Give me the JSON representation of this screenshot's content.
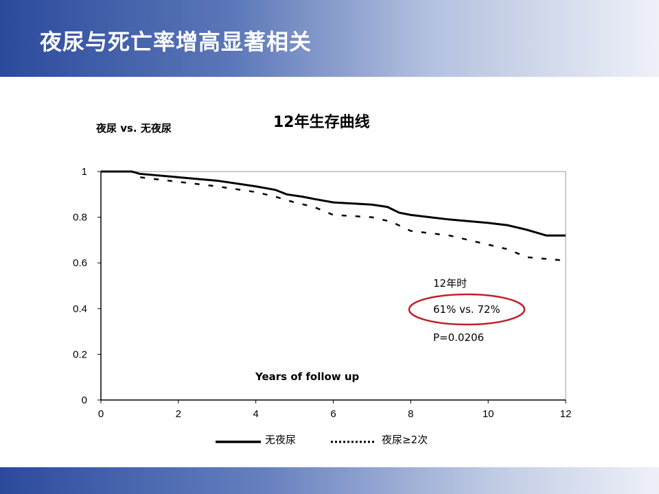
{
  "slide": {
    "title": "夜尿与死亡率增高显著相关",
    "subtitle": "夜尿 vs. 无夜尿"
  },
  "chart_data": {
    "type": "line",
    "title": "12年生存曲线",
    "xlabel": "Years of follow up",
    "ylabel": "",
    "xlim": [
      0,
      12
    ],
    "ylim": [
      0,
      1
    ],
    "xticks": [
      "0",
      "2",
      "4",
      "6",
      "8",
      "10",
      "12"
    ],
    "yticks": [
      "0",
      "0.2",
      "0.4",
      "0.6",
      "0.8",
      "1"
    ],
    "series": [
      {
        "name": "无夜尿",
        "style": "solid",
        "x": [
          0,
          0.8,
          1,
          2,
          3,
          4,
          4.5,
          4.8,
          5.2,
          5.5,
          6,
          7,
          7.4,
          7.7,
          8,
          9,
          10,
          10.5,
          11,
          11.5,
          12
        ],
        "y": [
          1,
          1,
          0.99,
          0.975,
          0.96,
          0.935,
          0.92,
          0.9,
          0.89,
          0.88,
          0.865,
          0.855,
          0.845,
          0.82,
          0.81,
          0.79,
          0.775,
          0.765,
          0.745,
          0.72,
          0.72
        ]
      },
      {
        "name": "夜尿≥2次",
        "style": "dashed",
        "x": [
          0,
          0.8,
          1,
          2,
          3,
          4,
          4.5,
          5,
          5.5,
          6,
          7,
          7.5,
          8,
          9,
          9.5,
          10,
          10.5,
          11,
          12
        ],
        "y": [
          1,
          1,
          0.975,
          0.955,
          0.935,
          0.91,
          0.89,
          0.865,
          0.845,
          0.81,
          0.8,
          0.78,
          0.74,
          0.72,
          0.7,
          0.68,
          0.66,
          0.625,
          0.61
        ]
      }
    ],
    "annotations": [
      "12年时",
      "61% vs. 72%",
      "P=0.0206"
    ],
    "highlight_color": "#c0202a"
  }
}
